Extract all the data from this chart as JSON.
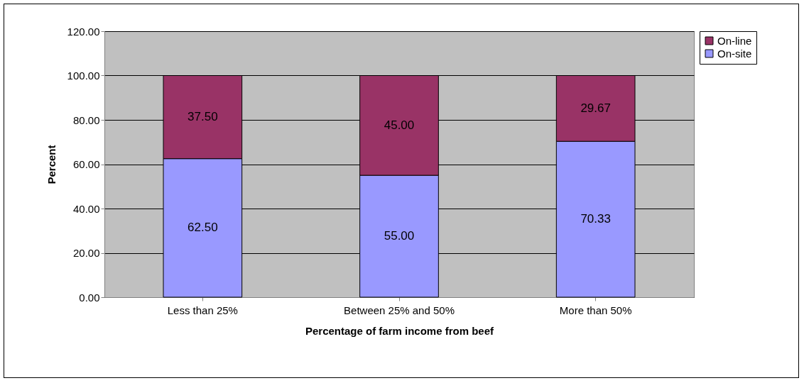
{
  "chart_data": {
    "type": "bar",
    "stacked": true,
    "xlabel": "Percentage of farm income from beef",
    "ylabel": "Percent",
    "categories": [
      "Less than 25%",
      "Between 25% and 50%",
      "More than 50%"
    ],
    "series": [
      {
        "name": "On-site",
        "color": "#9999ff",
        "values": [
          62.5,
          55,
          70.33
        ],
        "value_labels": [
          "62.50",
          "55.00",
          "70.33"
        ]
      },
      {
        "name": "On-line",
        "color": "#993366",
        "values": [
          37.5,
          45,
          29.67
        ],
        "value_labels": [
          "37.50",
          "45.00",
          "29.67"
        ]
      }
    ],
    "ylim": [
      0,
      120
    ],
    "yticks": [
      {
        "value": 0,
        "label": "0.00"
      },
      {
        "value": 20,
        "label": "20.00"
      },
      {
        "value": 40,
        "label": "40.00"
      },
      {
        "value": 60,
        "label": "60.00"
      },
      {
        "value": 80,
        "label": "80.00"
      },
      {
        "value": 100,
        "label": "100.00"
      },
      {
        "value": 120,
        "label": "120.00"
      }
    ],
    "grid": "y",
    "legend": "right"
  }
}
